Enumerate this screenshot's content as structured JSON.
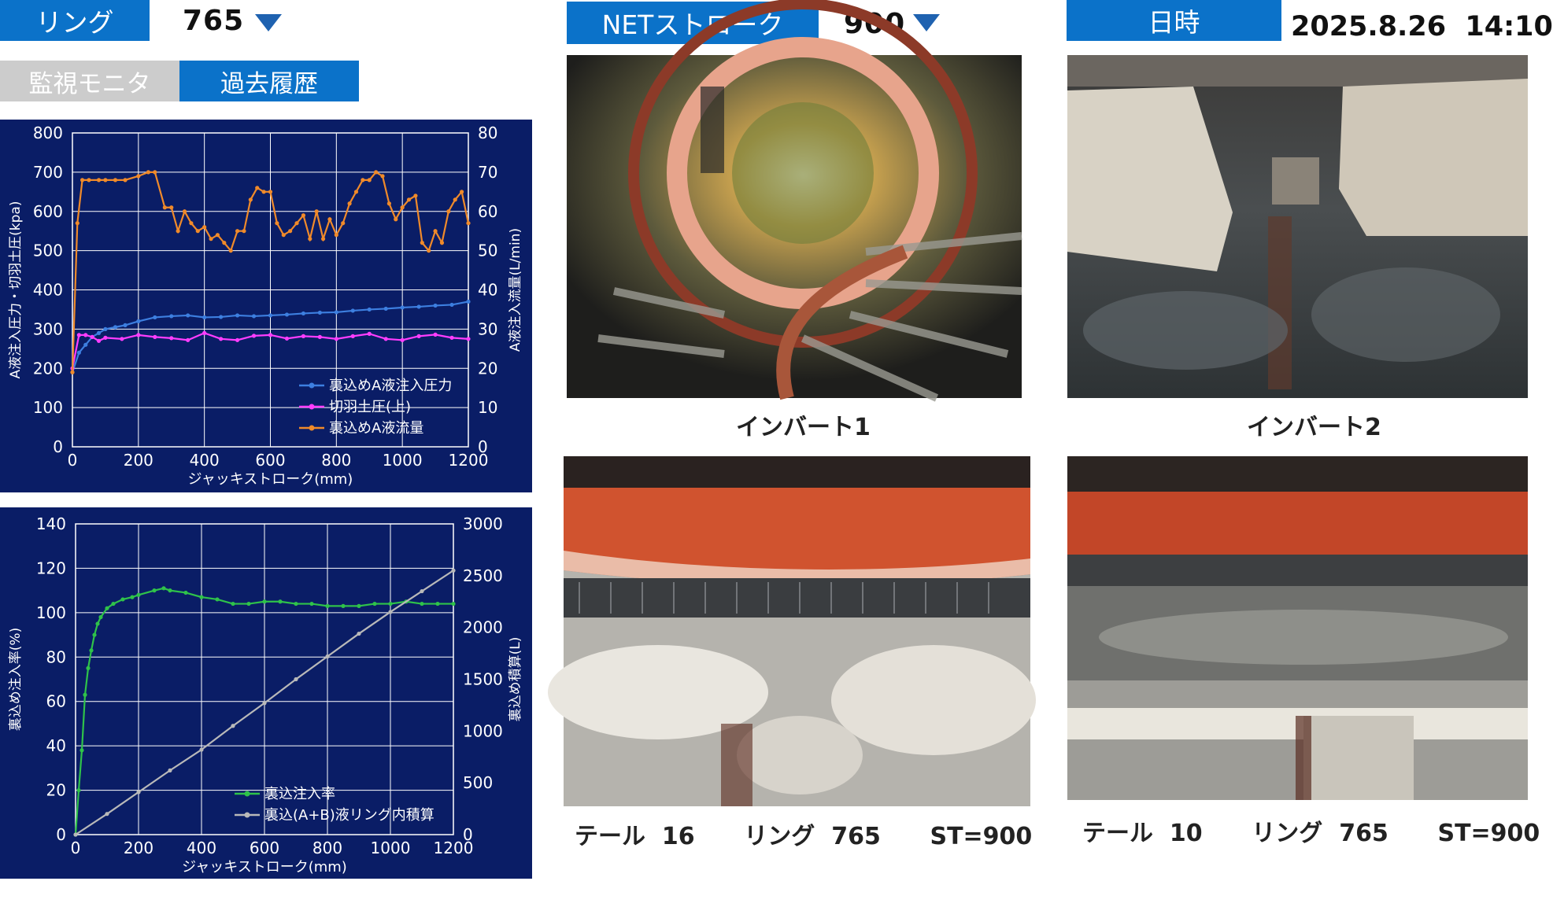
{
  "header": {
    "ring_label": "リング",
    "ring_value": "765",
    "net_stroke_label": "NETストローク",
    "net_stroke_value": "900",
    "datetime_label": "日時",
    "datetime_value": "2025.8.26  14:10"
  },
  "tabs": [
    {
      "label": "監視モニタ",
      "active": false
    },
    {
      "label": "過去履歴",
      "active": true
    }
  ],
  "colors": {
    "accent": "#0b72c9",
    "chart_bg": "#0a1d66",
    "tab_inactive": "#cccccc",
    "series_blue": "#3d7fe0",
    "series_magenta": "#ff3dff",
    "series_orange": "#f08a2a",
    "series_green": "#2fc24a",
    "series_gray": "#b9b9b9"
  },
  "chart_data": [
    {
      "type": "line",
      "xlabel": "ジャッキストローク(mm)",
      "ylabel": "A液注入圧力・切羽土圧(kpa)",
      "y2label": "A液注入流量(L/min)",
      "xlim": [
        0,
        1200
      ],
      "ylim": [
        0,
        800
      ],
      "y2lim": [
        0,
        80
      ],
      "xticks": [
        "0",
        "200",
        "400",
        "600",
        "800",
        "1000",
        "1200"
      ],
      "yticks": [
        "0",
        "100",
        "200",
        "300",
        "400",
        "500",
        "600",
        "700",
        "800"
      ],
      "y2ticks": [
        "0",
        "10",
        "20",
        "30",
        "40",
        "50",
        "60",
        "70",
        "80"
      ],
      "grid": true,
      "legend_position": "bottom-right",
      "series": [
        {
          "name": "裏込めA液注入圧力",
          "axis": "left",
          "color": "#3d7fe0",
          "x": [
            0,
            20,
            40,
            60,
            80,
            100,
            130,
            160,
            200,
            250,
            300,
            350,
            400,
            450,
            500,
            550,
            600,
            650,
            700,
            750,
            800,
            850,
            900,
            950,
            1000,
            1050,
            1100,
            1150,
            1200
          ],
          "y": [
            190,
            240,
            260,
            280,
            290,
            300,
            305,
            310,
            320,
            330,
            333,
            335,
            330,
            331,
            335,
            333,
            335,
            337,
            340,
            342,
            343,
            347,
            350,
            352,
            355,
            357,
            360,
            362,
            370
          ]
        },
        {
          "name": "切羽土圧(上)",
          "axis": "left",
          "color": "#ff3dff",
          "x": [
            0,
            20,
            40,
            60,
            80,
            100,
            150,
            200,
            250,
            300,
            350,
            400,
            450,
            500,
            550,
            600,
            650,
            700,
            750,
            800,
            850,
            900,
            950,
            1000,
            1050,
            1100,
            1150,
            1200
          ],
          "y": [
            200,
            285,
            285,
            280,
            270,
            278,
            275,
            285,
            280,
            277,
            272,
            290,
            275,
            272,
            283,
            285,
            276,
            282,
            280,
            275,
            282,
            288,
            275,
            272,
            282,
            286,
            278,
            275
          ]
        },
        {
          "name": "裏込めA液流量",
          "axis": "right",
          "color": "#f08a2a",
          "x": [
            0,
            15,
            30,
            50,
            80,
            100,
            130,
            160,
            200,
            230,
            250,
            280,
            300,
            320,
            340,
            360,
            380,
            400,
            420,
            440,
            460,
            480,
            500,
            520,
            540,
            560,
            580,
            600,
            620,
            640,
            660,
            680,
            700,
            720,
            740,
            760,
            780,
            800,
            820,
            840,
            860,
            880,
            900,
            920,
            940,
            960,
            980,
            1000,
            1020,
            1040,
            1060,
            1080,
            1100,
            1120,
            1140,
            1160,
            1180,
            1200
          ],
          "y": [
            19,
            57,
            68,
            68,
            68,
            68,
            68,
            68,
            69,
            70,
            70,
            61,
            61,
            55,
            60,
            57,
            55,
            56,
            53,
            54,
            52,
            50,
            55,
            55,
            63,
            66,
            65,
            65,
            57,
            54,
            55,
            57,
            59,
            53,
            60,
            53,
            58,
            54,
            57,
            62,
            65,
            68,
            68,
            70,
            69,
            62,
            58,
            61,
            63,
            64,
            52,
            50,
            55,
            52,
            60,
            63,
            65,
            57
          ]
        }
      ]
    },
    {
      "type": "line",
      "xlabel": "ジャッキストローク(mm)",
      "ylabel": "裏込め注入率(%)",
      "y2label": "裏込め積算(L)",
      "xlim": [
        0,
        1200
      ],
      "ylim": [
        0,
        140
      ],
      "y2lim": [
        0,
        3000
      ],
      "xticks": [
        "0",
        "200",
        "400",
        "600",
        "800",
        "1000",
        "1200"
      ],
      "yticks": [
        "0",
        "20",
        "40",
        "60",
        "80",
        "100",
        "120",
        "140"
      ],
      "y2ticks": [
        "0",
        "500",
        "1000",
        "1500",
        "2000",
        "2500",
        "3000"
      ],
      "grid": true,
      "legend_position": "bottom-center",
      "series": [
        {
          "name": "裏込注入率",
          "axis": "left",
          "color": "#2fc24a",
          "x": [
            0,
            10,
            20,
            30,
            40,
            50,
            60,
            70,
            80,
            100,
            120,
            150,
            180,
            200,
            250,
            280,
            300,
            350,
            400,
            450,
            500,
            550,
            600,
            650,
            700,
            750,
            800,
            850,
            900,
            950,
            1000,
            1050,
            1100,
            1150,
            1200
          ],
          "y": [
            0,
            20,
            38,
            63,
            75,
            83,
            90,
            95,
            98,
            102,
            104,
            106,
            107,
            108,
            110,
            111,
            110,
            109,
            107,
            106,
            104,
            104,
            105,
            105,
            104,
            104,
            103,
            103,
            103,
            104,
            104,
            105,
            104,
            104,
            104
          ]
        },
        {
          "name": "裏込(A+B)液リング内積算",
          "axis": "right",
          "color": "#b9b9b9",
          "x": [
            0,
            100,
            200,
            300,
            400,
            500,
            600,
            700,
            800,
            900,
            1000,
            1100,
            1200
          ],
          "y": [
            0,
            200,
            410,
            620,
            820,
            1050,
            1270,
            1500,
            1720,
            1940,
            2150,
            2350,
            2550
          ]
        }
      ]
    }
  ],
  "photos": [
    {
      "name": "invert-1",
      "caption": "インバート1"
    },
    {
      "name": "invert-2",
      "caption": "インバート2"
    },
    {
      "name": "tail-16",
      "caption": "テール  16      リング  765      ST=900"
    },
    {
      "name": "tail-10",
      "caption": "テール  10      リング  765      ST=900"
    }
  ]
}
